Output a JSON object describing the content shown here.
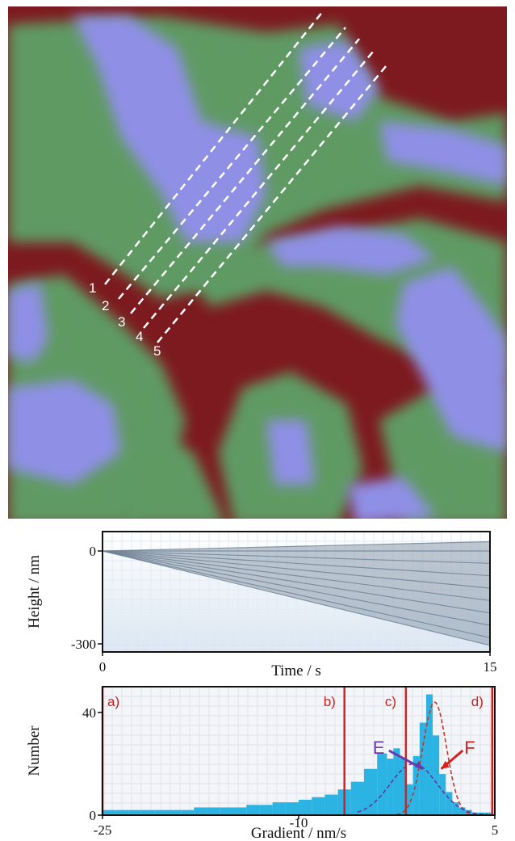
{
  "map": {
    "profile_labels": [
      "1",
      "2",
      "3",
      "4",
      "5"
    ],
    "colors": {
      "red": "#7d1a1f",
      "green": "#5e9a63",
      "blue": "#8f8fe6"
    }
  },
  "chart_data": [
    {
      "type": "line",
      "title": "",
      "xlabel": "Time / s",
      "ylabel": "Height / nm",
      "xlim": [
        0,
        15
      ],
      "ylim": [
        -300,
        0
      ],
      "xticks": [
        0,
        15
      ],
      "yticks": [
        0,
        -300
      ],
      "series": [
        {
          "x": [
            0,
            15
          ],
          "y": [
            0,
            30
          ]
        },
        {
          "x": [
            0,
            15
          ],
          "y": [
            0,
            0
          ]
        },
        {
          "x": [
            0,
            15
          ],
          "y": [
            0,
            -40
          ]
        },
        {
          "x": [
            0,
            15
          ],
          "y": [
            0,
            -80
          ]
        },
        {
          "x": [
            0,
            15
          ],
          "y": [
            0,
            -120
          ]
        },
        {
          "x": [
            0,
            15
          ],
          "y": [
            0,
            -160
          ]
        },
        {
          "x": [
            0,
            15
          ],
          "y": [
            0,
            -200
          ]
        },
        {
          "x": [
            0,
            15
          ],
          "y": [
            0,
            -240
          ]
        },
        {
          "x": [
            0,
            15
          ],
          "y": [
            0,
            -280
          ]
        },
        {
          "x": [
            0,
            15
          ],
          "y": [
            0,
            -305
          ]
        }
      ],
      "grid": true
    },
    {
      "type": "bar",
      "title": "",
      "xlabel": "Gradient / nm/s",
      "ylabel": "Number",
      "xlim": [
        -25,
        5
      ],
      "ylim": [
        0,
        50
      ],
      "xticks": [
        "-25",
        "-10",
        "5"
      ],
      "yticks": [
        0,
        40
      ],
      "bin_centers": [
        -24.5,
        -23.5,
        -22.5,
        -21.5,
        -20.5,
        -19.5,
        -18.5,
        -17.5,
        -16.5,
        -15.5,
        -14.5,
        -13.5,
        -12.5,
        -11.5,
        -10.5,
        -9.5,
        -8.5,
        -7.5,
        -6.5,
        -5.5,
        -4.5,
        -3.5,
        -3,
        -2.5,
        -2,
        -1.5,
        -1,
        -0.5,
        0,
        0.5,
        1,
        1.5,
        2,
        2.5,
        3,
        3.5,
        4,
        4.5
      ],
      "counts": [
        2,
        2,
        2,
        2,
        2,
        2,
        2,
        3,
        3,
        3,
        3,
        4,
        4,
        5,
        5,
        6,
        7,
        8,
        10,
        13,
        18,
        24,
        22,
        26,
        22,
        12,
        23,
        36,
        47,
        31,
        16,
        9,
        5,
        3,
        2,
        1,
        1,
        1
      ],
      "region_lines": [
        -25,
        -6.5,
        -1.8,
        4.8
      ],
      "region_labels": [
        "a)",
        "b)",
        "c)",
        "d)"
      ],
      "annotations": [
        {
          "label": "E",
          "color": "#6a3aa8"
        },
        {
          "label": "F",
          "color": "#d81f1f"
        }
      ],
      "grid": true
    }
  ]
}
